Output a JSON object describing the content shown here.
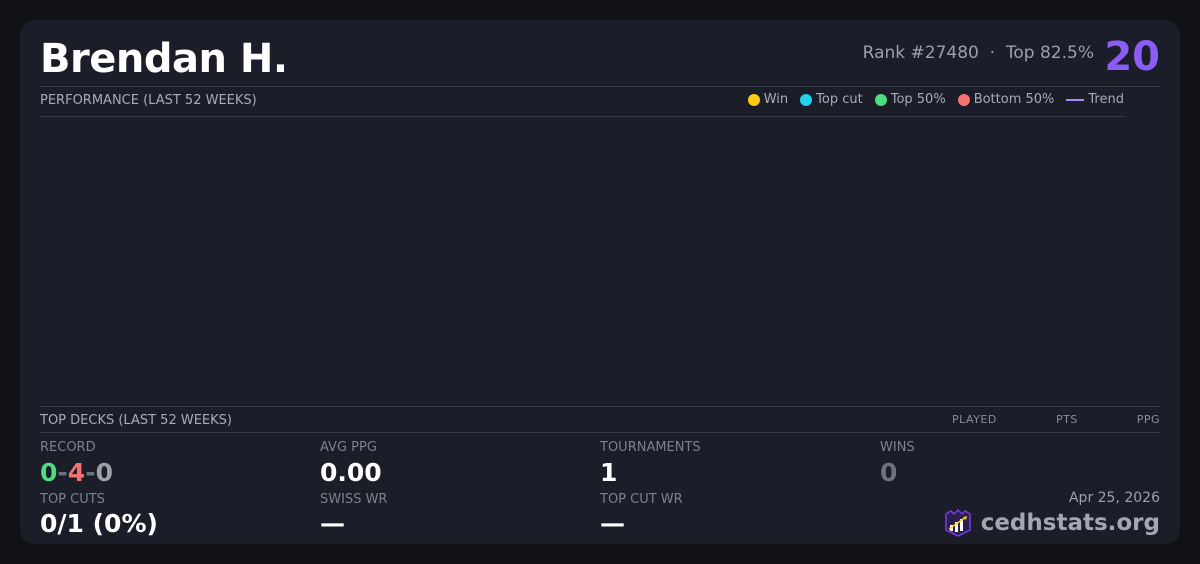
{
  "player": {
    "name": "Brendan H.",
    "rank": "Rank #27480",
    "separator": "·",
    "top_percent": "Top 82.5%",
    "score": "20"
  },
  "performance": {
    "title": "PERFORMANCE (LAST 52 WEEKS)",
    "legend": [
      {
        "label": "Win",
        "color": "#facc15"
      },
      {
        "label": "Top cut",
        "color": "#22d3ee"
      },
      {
        "label": "Top 50%",
        "color": "#4ade80"
      },
      {
        "label": "Bottom 50%",
        "color": "#f87171"
      },
      {
        "label": "Trend",
        "color": "#a78bfa"
      }
    ]
  },
  "top_decks": {
    "title": "TOP DECKS (LAST 52 WEEKS)",
    "columns": [
      "PLAYED",
      "PTS",
      "PPG"
    ]
  },
  "stats": {
    "record": {
      "label": "RECORD",
      "wins": "0",
      "losses": "4",
      "draws": "0",
      "dash": "-"
    },
    "avg_ppg": {
      "label": "AVG PPG",
      "value": "0.00"
    },
    "tournaments": {
      "label": "TOURNAMENTS",
      "value": "1"
    },
    "wins": {
      "label": "WINS",
      "value": "0"
    },
    "top_cuts": {
      "label": "TOP CUTS",
      "value": "0/1 (0%)"
    },
    "swiss_wr": {
      "label": "SWISS WR",
      "value": "—"
    },
    "top_cut_wr": {
      "label": "TOP CUT WR",
      "value": "—"
    }
  },
  "footer": {
    "date": "Apr 25, 2026",
    "brand": "cedhstats.org"
  },
  "colors": {
    "accent": "#8b5cf6",
    "win": "#4ade80",
    "loss": "#f87171",
    "draw": "#9ca0ab"
  }
}
